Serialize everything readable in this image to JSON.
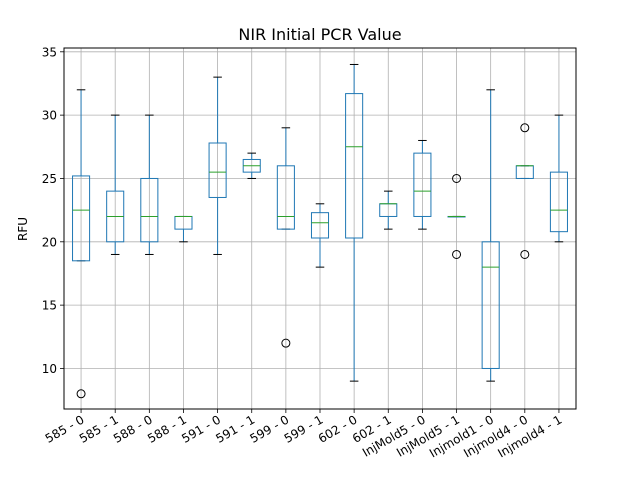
{
  "chart_data": {
    "type": "box",
    "title": "NIR Initial PCR Value",
    "xlabel": "",
    "ylabel": "RFU",
    "ylim": [
      6.8,
      35.3
    ],
    "yticks": [
      10,
      15,
      20,
      25,
      30,
      35
    ],
    "grid": true,
    "colors": {
      "box": "#1f77b4",
      "median": "#2ca02c",
      "grid": "#b0b0b0",
      "whisker": "#1f77b4"
    },
    "categories": [
      "585 - 0",
      "585 - 1",
      "588 - 0",
      "588 - 1",
      "591 - 0",
      "591 - 1",
      "599 - 0",
      "599 - 1",
      "602 - 0",
      "602 - 1",
      "InjMold5 - 0",
      "InjMold5 - 1",
      "Injmold1 - 0",
      "Injmold4 - 0",
      "Injmold4 - 1"
    ],
    "boxes": [
      {
        "label": "585 - 0",
        "whislo": 18.5,
        "q1": 18.5,
        "med": 22.5,
        "q3": 25.2,
        "whishi": 32,
        "fliers": [
          8
        ]
      },
      {
        "label": "585 - 1",
        "whislo": 19,
        "q1": 20,
        "med": 22,
        "q3": 24,
        "whishi": 30,
        "fliers": []
      },
      {
        "label": "588 - 0",
        "whislo": 19,
        "q1": 20,
        "med": 22,
        "q3": 25,
        "whishi": 30,
        "fliers": []
      },
      {
        "label": "588 - 1",
        "whislo": 20,
        "q1": 21,
        "med": 22,
        "q3": 22,
        "whishi": 22,
        "fliers": []
      },
      {
        "label": "591 - 0",
        "whislo": 19,
        "q1": 23.5,
        "med": 25.5,
        "q3": 27.8,
        "whishi": 33,
        "fliers": []
      },
      {
        "label": "591 - 1",
        "whislo": 25,
        "q1": 25.5,
        "med": 26,
        "q3": 26.5,
        "whishi": 27,
        "fliers": []
      },
      {
        "label": "599 - 0",
        "whislo": 21,
        "q1": 21,
        "med": 22,
        "q3": 26,
        "whishi": 29,
        "fliers": [
          12
        ]
      },
      {
        "label": "599 - 1",
        "whislo": 18,
        "q1": 20.3,
        "med": 21.5,
        "q3": 22.3,
        "whishi": 23,
        "fliers": []
      },
      {
        "label": "602 - 0",
        "whislo": 9,
        "q1": 20.3,
        "med": 27.5,
        "q3": 31.7,
        "whishi": 34,
        "fliers": []
      },
      {
        "label": "602 - 1",
        "whislo": 21,
        "q1": 22,
        "med": 23,
        "q3": 23,
        "whishi": 24,
        "fliers": []
      },
      {
        "label": "InjMold5 - 0",
        "whislo": 21,
        "q1": 22,
        "med": 24,
        "q3": 27,
        "whishi": 28,
        "fliers": []
      },
      {
        "label": "InjMold5 - 1",
        "whislo": 22,
        "q1": 22,
        "med": 22,
        "q3": 22,
        "whishi": 22,
        "fliers": [
          25,
          19
        ]
      },
      {
        "label": "Injmold1 - 0",
        "whislo": 9,
        "q1": 10,
        "med": 18,
        "q3": 20,
        "whishi": 32,
        "fliers": []
      },
      {
        "label": "Injmold4 - 0",
        "whislo": 25,
        "q1": 25,
        "med": 26,
        "q3": 26,
        "whishi": 26,
        "fliers": [
          29,
          19
        ]
      },
      {
        "label": "Injmold4 - 1",
        "whislo": 20,
        "q1": 20.8,
        "med": 22.5,
        "q3": 25.5,
        "whishi": 30,
        "fliers": []
      }
    ]
  }
}
